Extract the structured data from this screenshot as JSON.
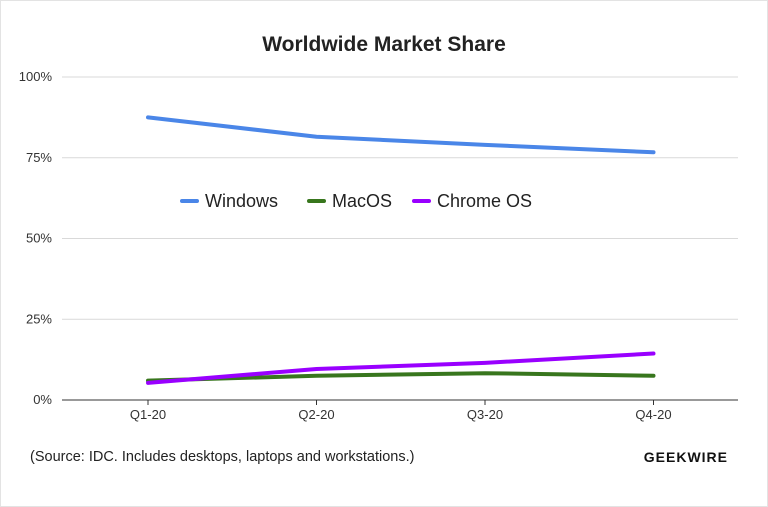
{
  "chart_data": {
    "type": "line",
    "title": "Worldwide Market Share",
    "categories": [
      "Q1-20",
      "Q2-20",
      "Q3-20",
      "Q4-20"
    ],
    "series": [
      {
        "name": "Windows",
        "color": "#4a86e8",
        "values": [
          87.5,
          81.5,
          79.0,
          76.7
        ]
      },
      {
        "name": "MacOS",
        "color": "#38761d",
        "values": [
          6.0,
          7.5,
          8.3,
          7.5
        ]
      },
      {
        "name": "Chrome OS",
        "color": "#9900ff",
        "values": [
          5.3,
          9.6,
          11.5,
          14.4
        ]
      }
    ],
    "yticks": [
      {
        "value": 0,
        "label": "0%"
      },
      {
        "value": 25,
        "label": "25%"
      },
      {
        "value": 50,
        "label": "50%"
      },
      {
        "value": 75,
        "label": "75%"
      },
      {
        "value": 100,
        "label": "100%"
      }
    ],
    "ylim": [
      0,
      100
    ],
    "xlabel": "",
    "ylabel": "",
    "grid": true,
    "legend_position": "inside-center"
  },
  "footer": {
    "source": "(Source: IDC. Includes desktops, laptops and workstations.)",
    "brand": "GEEKWIRE"
  }
}
